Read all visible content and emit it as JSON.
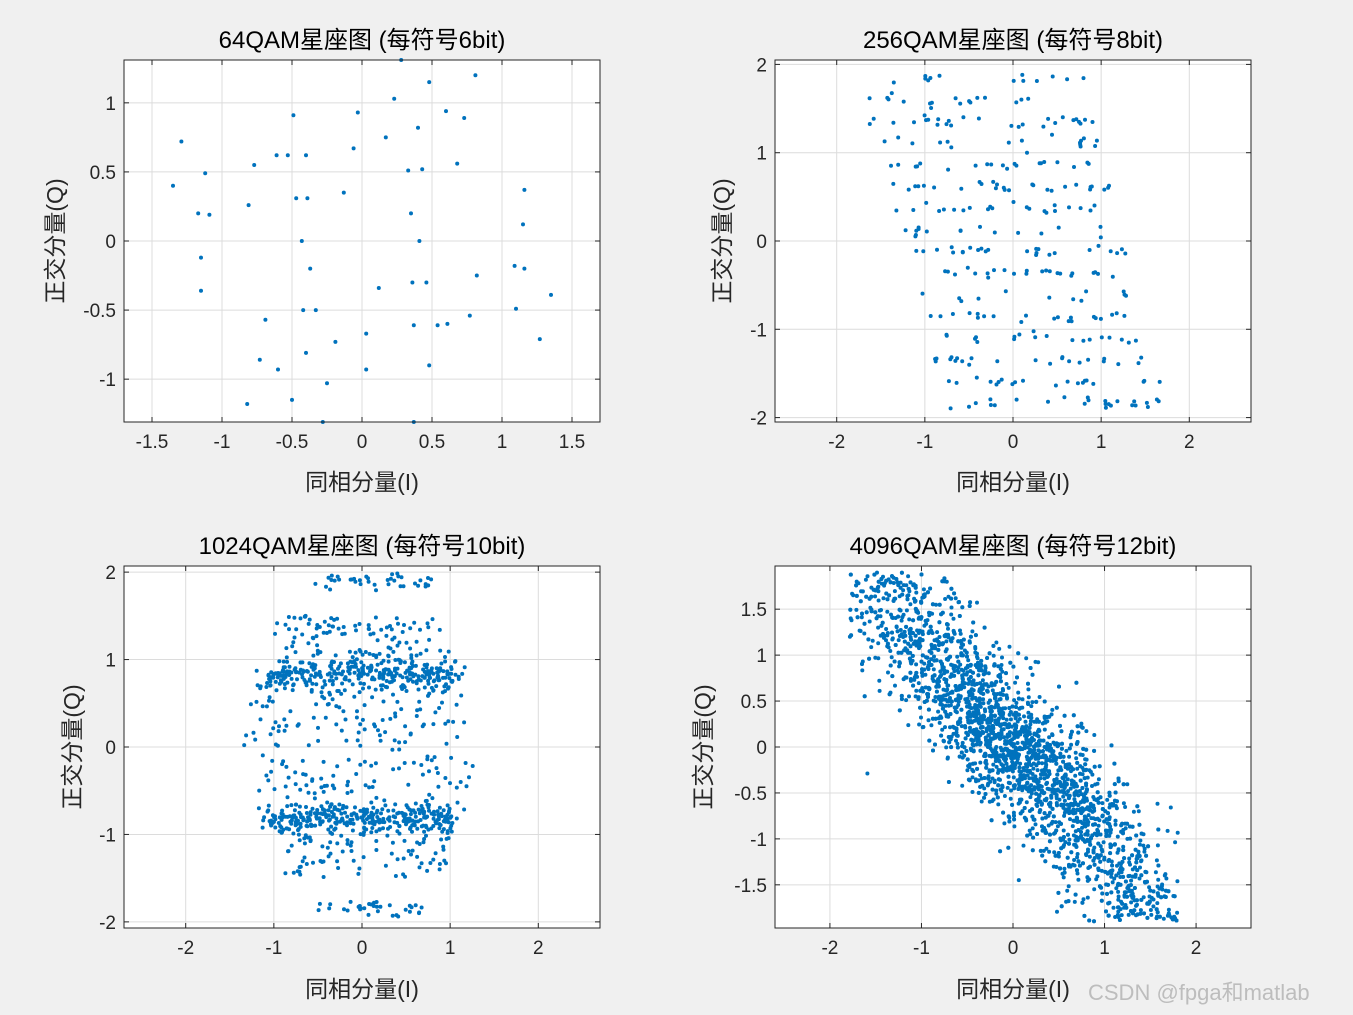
{
  "watermark": "CSDN @fpga和matlab",
  "colors": {
    "marker": "#0072BD",
    "grid": "#dcdcdc",
    "axis": "#262626",
    "plot_bg": "#ffffff",
    "figure_bg": "#f0f0f0"
  },
  "chart_data": [
    {
      "type": "scatter",
      "title": "64QAM星座图 (每符号6bit)",
      "xlabel": "同相分量(I)",
      "ylabel": "正交分量(Q)",
      "xlim": [
        -1.7,
        1.7
      ],
      "ylim": [
        -1.31,
        1.31
      ],
      "xticks": [
        -1.5,
        -1,
        -0.5,
        0,
        0.5,
        1,
        1.5
      ],
      "xtick_labels": [
        "-1.5",
        "-1",
        "-0.5",
        "0",
        "0.5",
        "1",
        "1.5"
      ],
      "yticks": [
        -1,
        -0.5,
        0,
        0.5,
        1
      ],
      "ytick_labels": [
        "-1",
        "-0.5",
        "0",
        "0.5",
        "1"
      ],
      "grid": true,
      "points": [
        [
          -1.35,
          0.4
        ],
        [
          -1.29,
          0.72
        ],
        [
          -1.17,
          0.2
        ],
        [
          -1.15,
          -0.12
        ],
        [
          -1.15,
          -0.36
        ],
        [
          -1.12,
          0.49
        ],
        [
          -1.09,
          0.19
        ],
        [
          -0.81,
          0.26
        ],
        [
          -0.77,
          0.55
        ],
        [
          -0.73,
          -0.86
        ],
        [
          -0.69,
          -0.57
        ],
        [
          -0.82,
          -1.18
        ],
        [
          -0.61,
          0.62
        ],
        [
          -0.6,
          -0.93
        ],
        [
          -0.53,
          0.62
        ],
        [
          -0.49,
          0.91
        ],
        [
          -0.47,
          0.31
        ],
        [
          -0.5,
          -1.15
        ],
        [
          -0.43,
          0.0
        ],
        [
          -0.42,
          -0.5
        ],
        [
          -0.4,
          0.62
        ],
        [
          -0.39,
          0.31
        ],
        [
          -0.4,
          -0.81
        ],
        [
          -0.37,
          -0.2
        ],
        [
          -0.33,
          -0.5
        ],
        [
          -0.28,
          -1.31
        ],
        [
          -0.25,
          -1.03
        ],
        [
          -0.19,
          -0.73
        ],
        [
          -0.13,
          0.35
        ],
        [
          -0.06,
          0.67
        ],
        [
          -0.03,
          0.93
        ],
        [
          0.03,
          -0.67
        ],
        [
          0.03,
          -0.93
        ],
        [
          0.12,
          -0.34
        ],
        [
          0.17,
          0.75
        ],
        [
          0.23,
          1.03
        ],
        [
          0.28,
          1.31
        ],
        [
          0.33,
          0.51
        ],
        [
          0.35,
          0.2
        ],
        [
          0.36,
          -0.3
        ],
        [
          0.37,
          -1.31
        ],
        [
          0.37,
          -0.61
        ],
        [
          0.4,
          0.82
        ],
        [
          0.41,
          0.0
        ],
        [
          0.43,
          0.52
        ],
        [
          0.46,
          -0.3
        ],
        [
          0.48,
          1.15
        ],
        [
          0.48,
          -0.9
        ],
        [
          0.54,
          -0.61
        ],
        [
          0.6,
          0.94
        ],
        [
          0.61,
          -0.6
        ],
        [
          0.68,
          0.56
        ],
        [
          0.73,
          0.89
        ],
        [
          0.77,
          -0.54
        ],
        [
          0.81,
          1.2
        ],
        [
          0.82,
          -0.25
        ],
        [
          1.09,
          -0.18
        ],
        [
          1.1,
          -0.49
        ],
        [
          1.15,
          0.12
        ],
        [
          1.16,
          0.37
        ],
        [
          1.16,
          -0.2
        ],
        [
          1.27,
          -0.71
        ],
        [
          1.35,
          -0.39
        ]
      ]
    },
    {
      "type": "scatter",
      "title": "256QAM星座图 (每符号8bit)",
      "xlabel": "同相分量(I)",
      "ylabel": "正交分量(Q)",
      "xlim": [
        -2.7,
        2.7
      ],
      "ylim": [
        -2.05,
        2.05
      ],
      "xticks": [
        -2,
        -1,
        0,
        1,
        2
      ],
      "xtick_labels": [
        "-2",
        "-1",
        "0",
        "1",
        "2"
      ],
      "yticks": [
        -2,
        -1,
        0,
        1,
        2
      ],
      "ytick_labels": [
        "-2",
        "-1",
        "0",
        "1",
        "2"
      ],
      "grid": true,
      "distribution": {
        "centers_i": [
          -1.2,
          -1.04,
          -0.88,
          -0.72,
          -0.56,
          -0.4,
          -0.24,
          -0.08,
          0.08,
          0.24,
          0.4,
          0.56,
          0.72,
          0.88,
          1.04,
          1.2
        ],
        "centers_q": [
          -2.0,
          -1.73,
          -1.47,
          -1.2,
          -0.93,
          -0.67,
          -0.4,
          -0.13,
          0.13,
          0.4,
          0.67,
          0.93,
          1.2,
          1.47,
          1.73,
          2.0
        ],
        "coupling": -0.12,
        "jitter": 0.04,
        "count": 330
      }
    },
    {
      "type": "scatter",
      "title": "1024QAM星座图 (每符号10bit)",
      "xlabel": "同相分量(I)",
      "ylabel": "正交分量(Q)",
      "xlim": [
        -2.7,
        2.7
      ],
      "ylim": [
        -2.07,
        2.07
      ],
      "xticks": [
        -2,
        -1,
        0,
        1,
        2
      ],
      "xtick_labels": [
        "-2",
        "-1",
        "0",
        "1",
        "2"
      ],
      "yticks": [
        -2,
        -1,
        0,
        1,
        2
      ],
      "ytick_labels": [
        "-2",
        "-1",
        "0",
        "1",
        "2"
      ],
      "grid": true,
      "distribution": {
        "i_range": [
          -1.5,
          1.5
        ],
        "q_range": [
          -2.05,
          2.05
        ],
        "dense_bands_q": [
          0.82,
          -0.82
        ],
        "jitter": 0.05,
        "count": 1100
      }
    },
    {
      "type": "scatter",
      "title": "4096QAM星座图 (每符号12bit)",
      "xlabel": "同相分量(I)",
      "ylabel": "正交分量(Q)",
      "xlim": [
        -2.6,
        2.6
      ],
      "ylim": [
        -1.97,
        1.97
      ],
      "xticks": [
        -2,
        -1,
        0,
        1,
        2
      ],
      "xtick_labels": [
        "-2",
        "-1",
        "0",
        "1",
        "2"
      ],
      "yticks": [
        -1.5,
        -1,
        -0.5,
        0,
        0.5,
        1,
        1.5
      ],
      "ytick_labels": [
        "-1.5",
        "-1",
        "-0.5",
        "0",
        "0.5",
        "1",
        "1.5"
      ],
      "grid": true,
      "distribution": {
        "i_range": [
          -1.8,
          1.8
        ],
        "q_range": [
          -1.95,
          1.95
        ],
        "coupling": -0.95,
        "jitter": 0.06,
        "count": 3200
      }
    }
  ]
}
